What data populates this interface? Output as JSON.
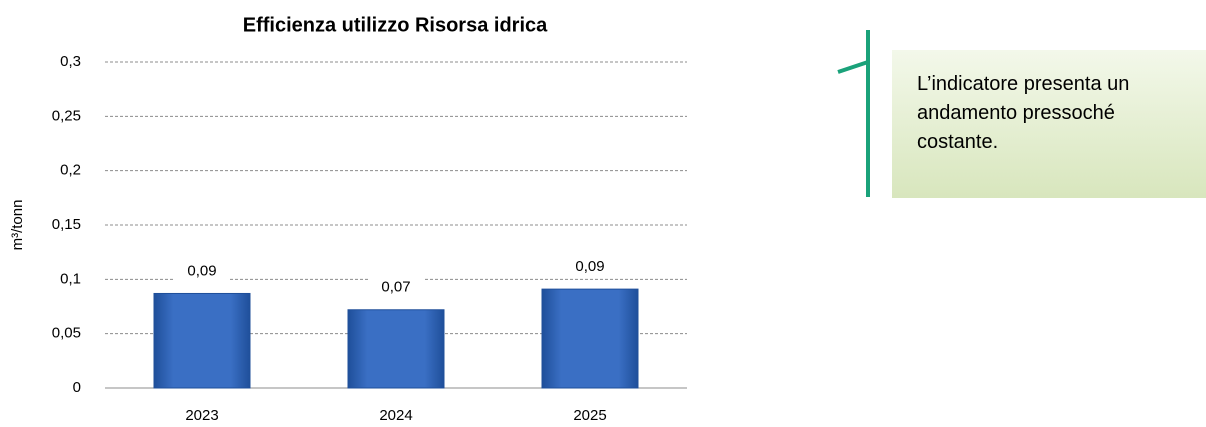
{
  "chart_data": {
    "type": "bar",
    "title": "Efficienza utilizzo Risorsa idrica",
    "y_label": "m³/tonn",
    "categories": [
      "2023",
      "2024",
      "2025"
    ],
    "values": [
      0.087,
      0.072,
      0.091
    ],
    "value_labels": [
      "0,09",
      "0,07",
      "0,09"
    ],
    "color": "#3a6fc4",
    "ylim": [
      0,
      0.3
    ],
    "yticks": [
      0,
      {
        "value": 0.05,
        "label": "0,05"
      },
      {
        "value": 0.1,
        "label": "0,1"
      },
      {
        "value": 0.15,
        "label": "0,15"
      },
      {
        "value": 0.2,
        "label": "0,2"
      },
      {
        "value": 0.25,
        "label": "0,25"
      },
      {
        "value": 0.3,
        "label": "0,3"
      }
    ],
    "grid": true,
    "annotation": "L’indicatore presenta un andamento pressoché costante."
  }
}
